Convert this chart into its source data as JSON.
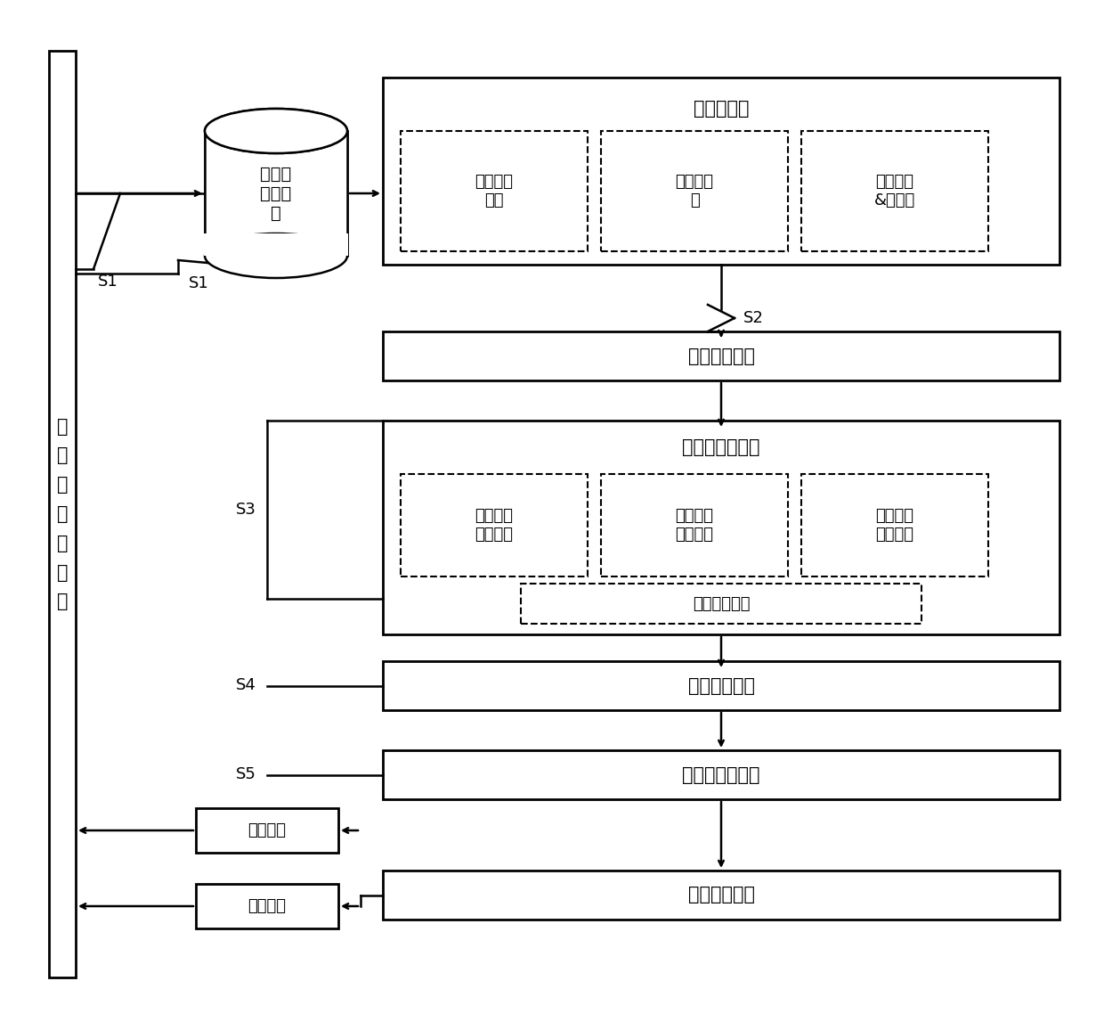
{
  "title_left": "热\n风\n炉\n烧\n炉\n过\n程",
  "cylinder_text": "烧炉操\n作样本\n集",
  "preprocess_title": "数据预处理",
  "preprocess_boxes": [
    "异常数据\n处理",
    "缺失值填\n补",
    "噪声滤波\n&归一化"
  ],
  "box1_text": "优良烧炉炉次",
  "classify_title": "模式分类与评价",
  "classify_boxes": [
    "分段聚合\n特征表示",
    "动态时间\n规整距离",
    "密度峰值\n快速聚类"
  ],
  "eval_box": "综合评价指标",
  "box2_text": "模式匹配空间",
  "box3_text": "分时段多级匹配",
  "box4_text": "最优操作模式",
  "valve1_text": "煤气阀门",
  "valve2_text": "空气阀门",
  "labels": [
    "S1",
    "S2",
    "S3",
    "S4",
    "S5"
  ],
  "line_color": "#000000",
  "box_color": "#000000",
  "bg_color": "#ffffff",
  "font_size": 14,
  "label_font_size": 13
}
